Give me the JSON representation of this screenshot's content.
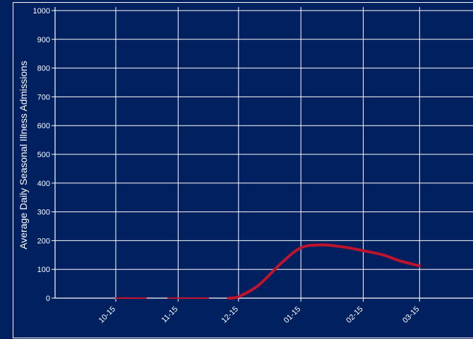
{
  "chart_data": {
    "type": "line",
    "ylabel": "Average Daily Seasonal Illness Admissions",
    "xlabel": "",
    "ylim": [
      0,
      1000
    ],
    "yticks": [
      0,
      100,
      200,
      300,
      400,
      500,
      600,
      700,
      800,
      900,
      1000
    ],
    "xticks": [
      "10-15",
      "11-15",
      "12-15",
      "01-15",
      "02-15",
      "03-15"
    ],
    "grid": true,
    "series": [
      {
        "color": "#c0142c",
        "segments": [
          {
            "x": [
              "10-15",
              "10-30"
            ],
            "y": [
              0,
              0
            ]
          },
          {
            "x": [
              "11-10",
              "11-30"
            ],
            "y": [
              0,
              0
            ]
          },
          {
            "x": [
              "12-10",
              "12-15",
              "12-25",
              "01-05",
              "01-15",
              "01-25",
              "02-05",
              "02-15",
              "02-25",
              "03-05",
              "03-15"
            ],
            "y": [
              0,
              5,
              45,
              120,
              175,
              185,
              178,
              165,
              150,
              130,
              112
            ]
          }
        ]
      }
    ],
    "colors": {
      "background": "#002060",
      "grid": "#ffffff",
      "text": "#ffffff"
    }
  }
}
